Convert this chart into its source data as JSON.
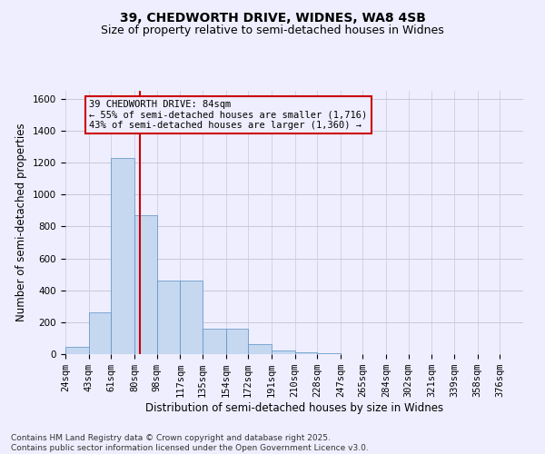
{
  "title1": "39, CHEDWORTH DRIVE, WIDNES, WA8 4SB",
  "title2": "Size of property relative to semi-detached houses in Widnes",
  "xlabel": "Distribution of semi-detached houses by size in Widnes",
  "ylabel": "Number of semi-detached properties",
  "annotation_title": "39 CHEDWORTH DRIVE: 84sqm",
  "annotation_line1": "← 55% of semi-detached houses are smaller (1,716)",
  "annotation_line2": "43% of semi-detached houses are larger (1,360) →",
  "footer1": "Contains HM Land Registry data © Crown copyright and database right 2025.",
  "footer2": "Contains public sector information licensed under the Open Government Licence v3.0.",
  "property_size": 84,
  "bin_edges": [
    24,
    43,
    61,
    80,
    98,
    117,
    135,
    154,
    172,
    191,
    210,
    228,
    247,
    265,
    284,
    302,
    321,
    339,
    358,
    376,
    395
  ],
  "bar_heights": [
    45,
    260,
    1230,
    870,
    460,
    460,
    160,
    160,
    60,
    20,
    10,
    5,
    0,
    0,
    0,
    0,
    0,
    0,
    0,
    0
  ],
  "bar_color": "#c5d8f0",
  "bar_edge_color": "#5a8fc3",
  "vline_color": "#cc0000",
  "grid_color": "#c8c8d8",
  "background_color": "#eeeeff",
  "ylim": [
    0,
    1650
  ],
  "yticks": [
    0,
    200,
    400,
    600,
    800,
    1000,
    1200,
    1400,
    1600
  ],
  "title_fontsize": 10,
  "subtitle_fontsize": 9,
  "axis_label_fontsize": 8.5,
  "tick_fontsize": 7.5,
  "annotation_fontsize": 7.5,
  "footer_fontsize": 6.5
}
